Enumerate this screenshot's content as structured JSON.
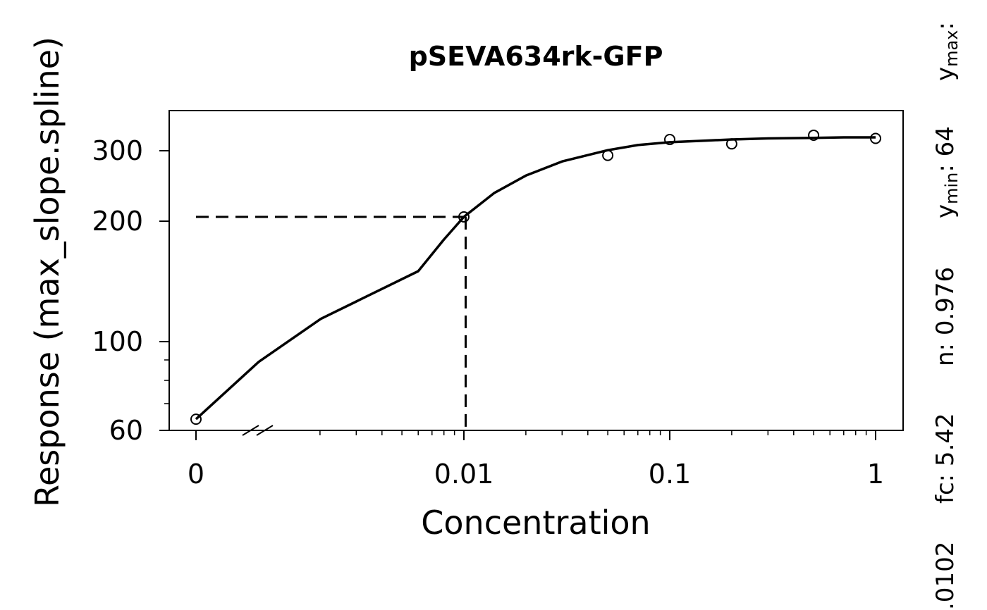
{
  "chart_data": {
    "type": "scatter",
    "title": "pSEVA634rk-GFP",
    "xlabel": "Concentration",
    "ylabel": "Response (max_slope.spline)",
    "x_scale": "log",
    "y_scale": "log",
    "x_axis_break": true,
    "grid": false,
    "xlim": [
      0.0008,
      1.2
    ],
    "ylim": [
      60,
      340
    ],
    "x_ticks": [
      {
        "value": 0,
        "label": "0"
      },
      {
        "value": 0.01,
        "label": "0.01"
      },
      {
        "value": 0.1,
        "label": "0.1"
      },
      {
        "value": 1,
        "label": "1"
      }
    ],
    "y_ticks": [
      {
        "value": 60,
        "label": "60"
      },
      {
        "value": 100,
        "label": "100"
      },
      {
        "value": 200,
        "label": "200"
      },
      {
        "value": 300,
        "label": "300"
      }
    ],
    "points": [
      {
        "x": 0,
        "y": 64
      },
      {
        "x": 0.01,
        "y": 205
      },
      {
        "x": 0.05,
        "y": 292
      },
      {
        "x": 0.1,
        "y": 320
      },
      {
        "x": 0.2,
        "y": 312
      },
      {
        "x": 0.5,
        "y": 328
      },
      {
        "x": 1,
        "y": 322
      }
    ],
    "fit_curve": {
      "x": [
        0,
        0.002,
        0.004,
        0.006,
        0.008,
        0.01,
        0.014,
        0.02,
        0.03,
        0.05,
        0.07,
        0.1,
        0.15,
        0.2,
        0.3,
        0.5,
        0.7,
        1
      ],
      "y": [
        64,
        89,
        114,
        150,
        180,
        205,
        235,
        260,
        282,
        301,
        310,
        315,
        318,
        320,
        322,
        323,
        324,
        324
      ]
    },
    "ec50_marker": {
      "x": 0.0102,
      "y": 205
    },
    "side_params": {
      "fc_label": "fc",
      "fc_value": "5.42",
      "n_label": "n",
      "n_value": "0.976",
      "ymin_label": "y",
      "ymin_sub": "min",
      "ymin_value": "64",
      "ymax_label": "y",
      "ymax_sub": "max",
      "ymax_value": "",
      "ec50_value": ".0102"
    }
  }
}
